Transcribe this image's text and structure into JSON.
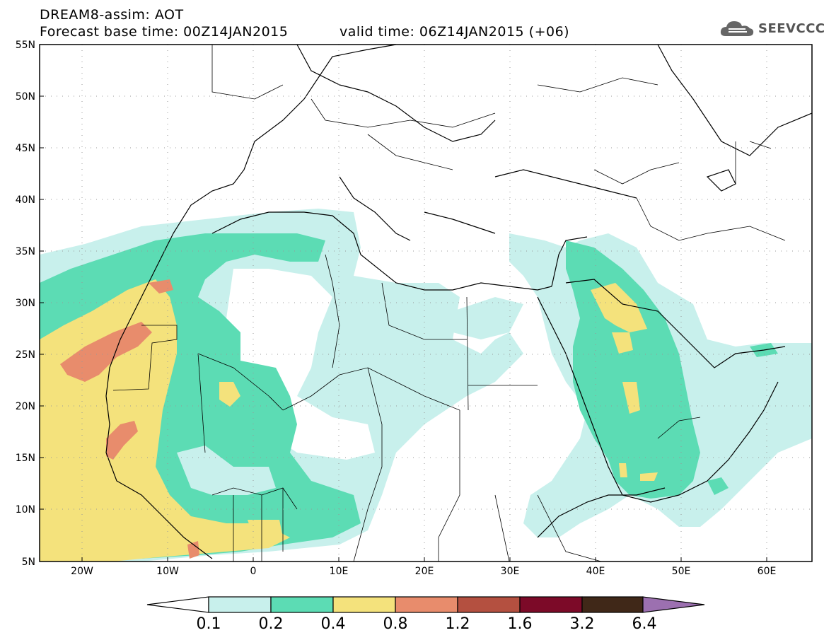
{
  "header": {
    "line1": "DREAM8-assim: AOT",
    "line2": "Forecast base time: 00Z14JAN2015",
    "valid": "valid time: 06Z14JAN2015 (+06)"
  },
  "logo": {
    "text": "SEEVCCC",
    "icon": "cloud-icon"
  },
  "axes": {
    "lat_labels": [
      "55N",
      "50N",
      "45N",
      "40N",
      "35N",
      "30N",
      "25N",
      "20N",
      "15N",
      "10N",
      "5N"
    ],
    "lon_labels": [
      "20W",
      "10W",
      "0",
      "10E",
      "20E",
      "30E",
      "40E",
      "50E",
      "60E"
    ]
  },
  "colorbar": {
    "labels": [
      "0.1",
      "0.2",
      "0.4",
      "0.8",
      "1.2",
      "1.6",
      "3.2",
      "6.4"
    ],
    "colors": [
      "#ffffff",
      "#c8f0ec",
      "#5cdcb4",
      "#f4e27c",
      "#e88c6c",
      "#b45040",
      "#7c0a28",
      "#402818",
      "#9c70b0"
    ]
  },
  "map": {
    "fill_colors": {
      "light": "#c8f0ec",
      "green": "#5cdcb4",
      "yellow": "#f4e27c",
      "orange": "#e88c6c"
    }
  }
}
